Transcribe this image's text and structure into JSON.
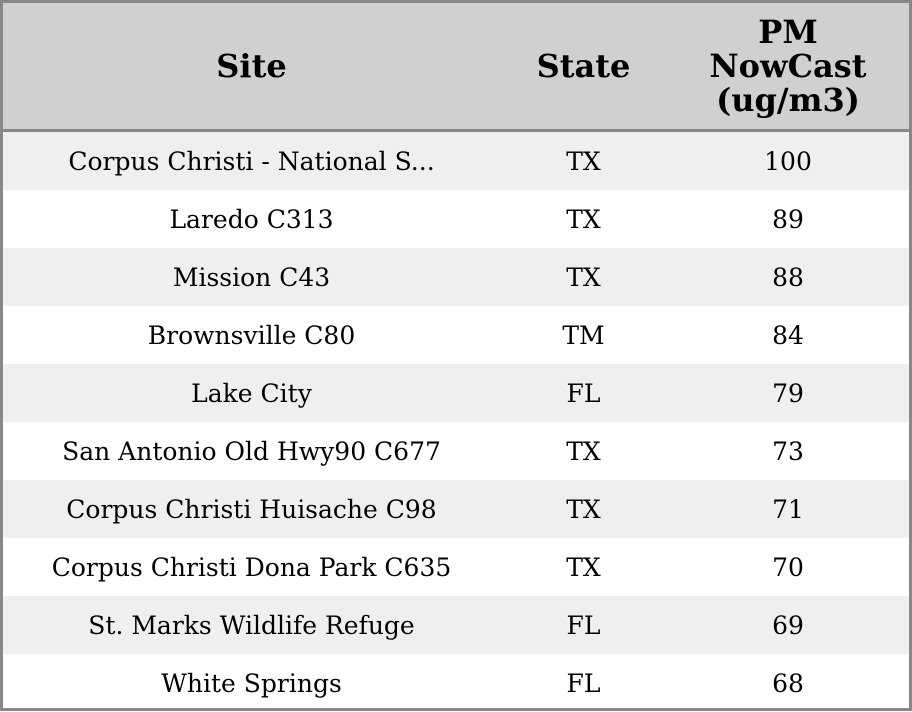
{
  "table": {
    "columns": [
      "Site",
      "State",
      "PM NowCast (ug/m3)"
    ],
    "rows": [
      [
        "Corpus Christi - National S...",
        "TX",
        100
      ],
      [
        "Laredo C313",
        "TX",
        89
      ],
      [
        "Mission C43",
        "TX",
        88
      ],
      [
        "Brownsville C80",
        "TM",
        84
      ],
      [
        "Lake City",
        "FL",
        79
      ],
      [
        "San Antonio Old Hwy90 C677",
        "TX",
        73
      ],
      [
        "Corpus Christi Huisache C98",
        "TX",
        71
      ],
      [
        "Corpus Christi Dona Park C635",
        "TX",
        70
      ],
      [
        "St. Marks Wildlife Refuge",
        "FL",
        69
      ],
      [
        "White Springs",
        "FL",
        68
      ]
    ]
  }
}
